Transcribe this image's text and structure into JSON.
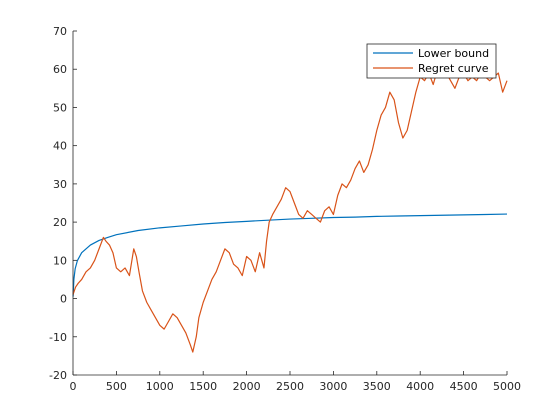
{
  "chart_data": {
    "type": "line",
    "title": "",
    "xlabel": "",
    "ylabel": "",
    "xlim": [
      0,
      5000
    ],
    "ylim": [
      -20,
      70
    ],
    "x_ticks": [
      0,
      500,
      1000,
      1500,
      2000,
      2500,
      3000,
      3500,
      4000,
      4500,
      5000
    ],
    "y_ticks": [
      -20,
      -10,
      0,
      10,
      20,
      30,
      40,
      50,
      60,
      70
    ],
    "x_tick_labels": [
      "0",
      "500",
      "1000",
      "1500",
      "2000",
      "2500",
      "3000",
      "3500",
      "4000",
      "4500",
      "5000"
    ],
    "y_tick_labels": [
      "-20",
      "-10",
      "0",
      "10",
      "20",
      "30",
      "40",
      "50",
      "60",
      "70"
    ],
    "grid": false,
    "legend_position": "top-right",
    "series": [
      {
        "name": "Lower bound",
        "color": "#0072BD",
        "x": [
          1,
          10,
          25,
          50,
          100,
          200,
          300,
          400,
          500,
          750,
          1000,
          1250,
          1500,
          1750,
          2000,
          2250,
          2500,
          2750,
          3000,
          3250,
          3500,
          3750,
          4000,
          4250,
          4500,
          4750,
          5000
        ],
        "values": [
          0.5,
          5.0,
          7.8,
          9.9,
          12.0,
          14.0,
          15.2,
          16.0,
          16.7,
          17.8,
          18.5,
          19.0,
          19.5,
          19.9,
          20.2,
          20.5,
          20.8,
          21.0,
          21.2,
          21.3,
          21.5,
          21.6,
          21.7,
          21.8,
          21.9,
          22.0,
          22.1
        ]
      },
      {
        "name": "Regret curve",
        "color": "#D95319",
        "x": [
          0,
          30,
          60,
          100,
          150,
          200,
          250,
          300,
          350,
          380,
          420,
          460,
          500,
          550,
          600,
          650,
          700,
          730,
          760,
          800,
          850,
          900,
          950,
          1000,
          1050,
          1100,
          1150,
          1200,
          1250,
          1300,
          1350,
          1380,
          1420,
          1450,
          1500,
          1550,
          1600,
          1650,
          1700,
          1750,
          1800,
          1850,
          1900,
          1950,
          2000,
          2050,
          2100,
          2150,
          2200,
          2230,
          2260,
          2300,
          2350,
          2400,
          2450,
          2500,
          2550,
          2600,
          2650,
          2700,
          2750,
          2800,
          2850,
          2900,
          2950,
          3000,
          3050,
          3100,
          3150,
          3200,
          3250,
          3300,
          3350,
          3400,
          3450,
          3500,
          3550,
          3600,
          3650,
          3700,
          3750,
          3800,
          3850,
          3900,
          3950,
          4000,
          4050,
          4100,
          4150,
          4200,
          4250,
          4300,
          4350,
          4400,
          4450,
          4500,
          4550,
          4600,
          4650,
          4700,
          4750,
          4800,
          4850,
          4900,
          4950,
          5000
        ],
        "values": [
          1,
          3,
          4,
          5,
          7,
          8,
          10,
          13,
          16,
          15,
          14,
          12,
          8,
          7,
          8,
          6,
          13,
          11,
          7,
          2,
          -1,
          -3,
          -5,
          -7,
          -8,
          -6,
          -4,
          -5,
          -7,
          -9,
          -12,
          -14,
          -10,
          -5,
          -1,
          2,
          5,
          7,
          10,
          13,
          12,
          9,
          8,
          6,
          11,
          10,
          7,
          12,
          8,
          15,
          20,
          22,
          24,
          26,
          29,
          28,
          25,
          22,
          21,
          23,
          22,
          21,
          20,
          23,
          24,
          22,
          27,
          30,
          29,
          31,
          34,
          36,
          33,
          35,
          39,
          44,
          48,
          50,
          54,
          52,
          46,
          42,
          44,
          49,
          54,
          58,
          57,
          59,
          56,
          60,
          58,
          59,
          57,
          55,
          58,
          59,
          57,
          58,
          57,
          59,
          58,
          57,
          58,
          59,
          54,
          57
        ]
      }
    ]
  }
}
